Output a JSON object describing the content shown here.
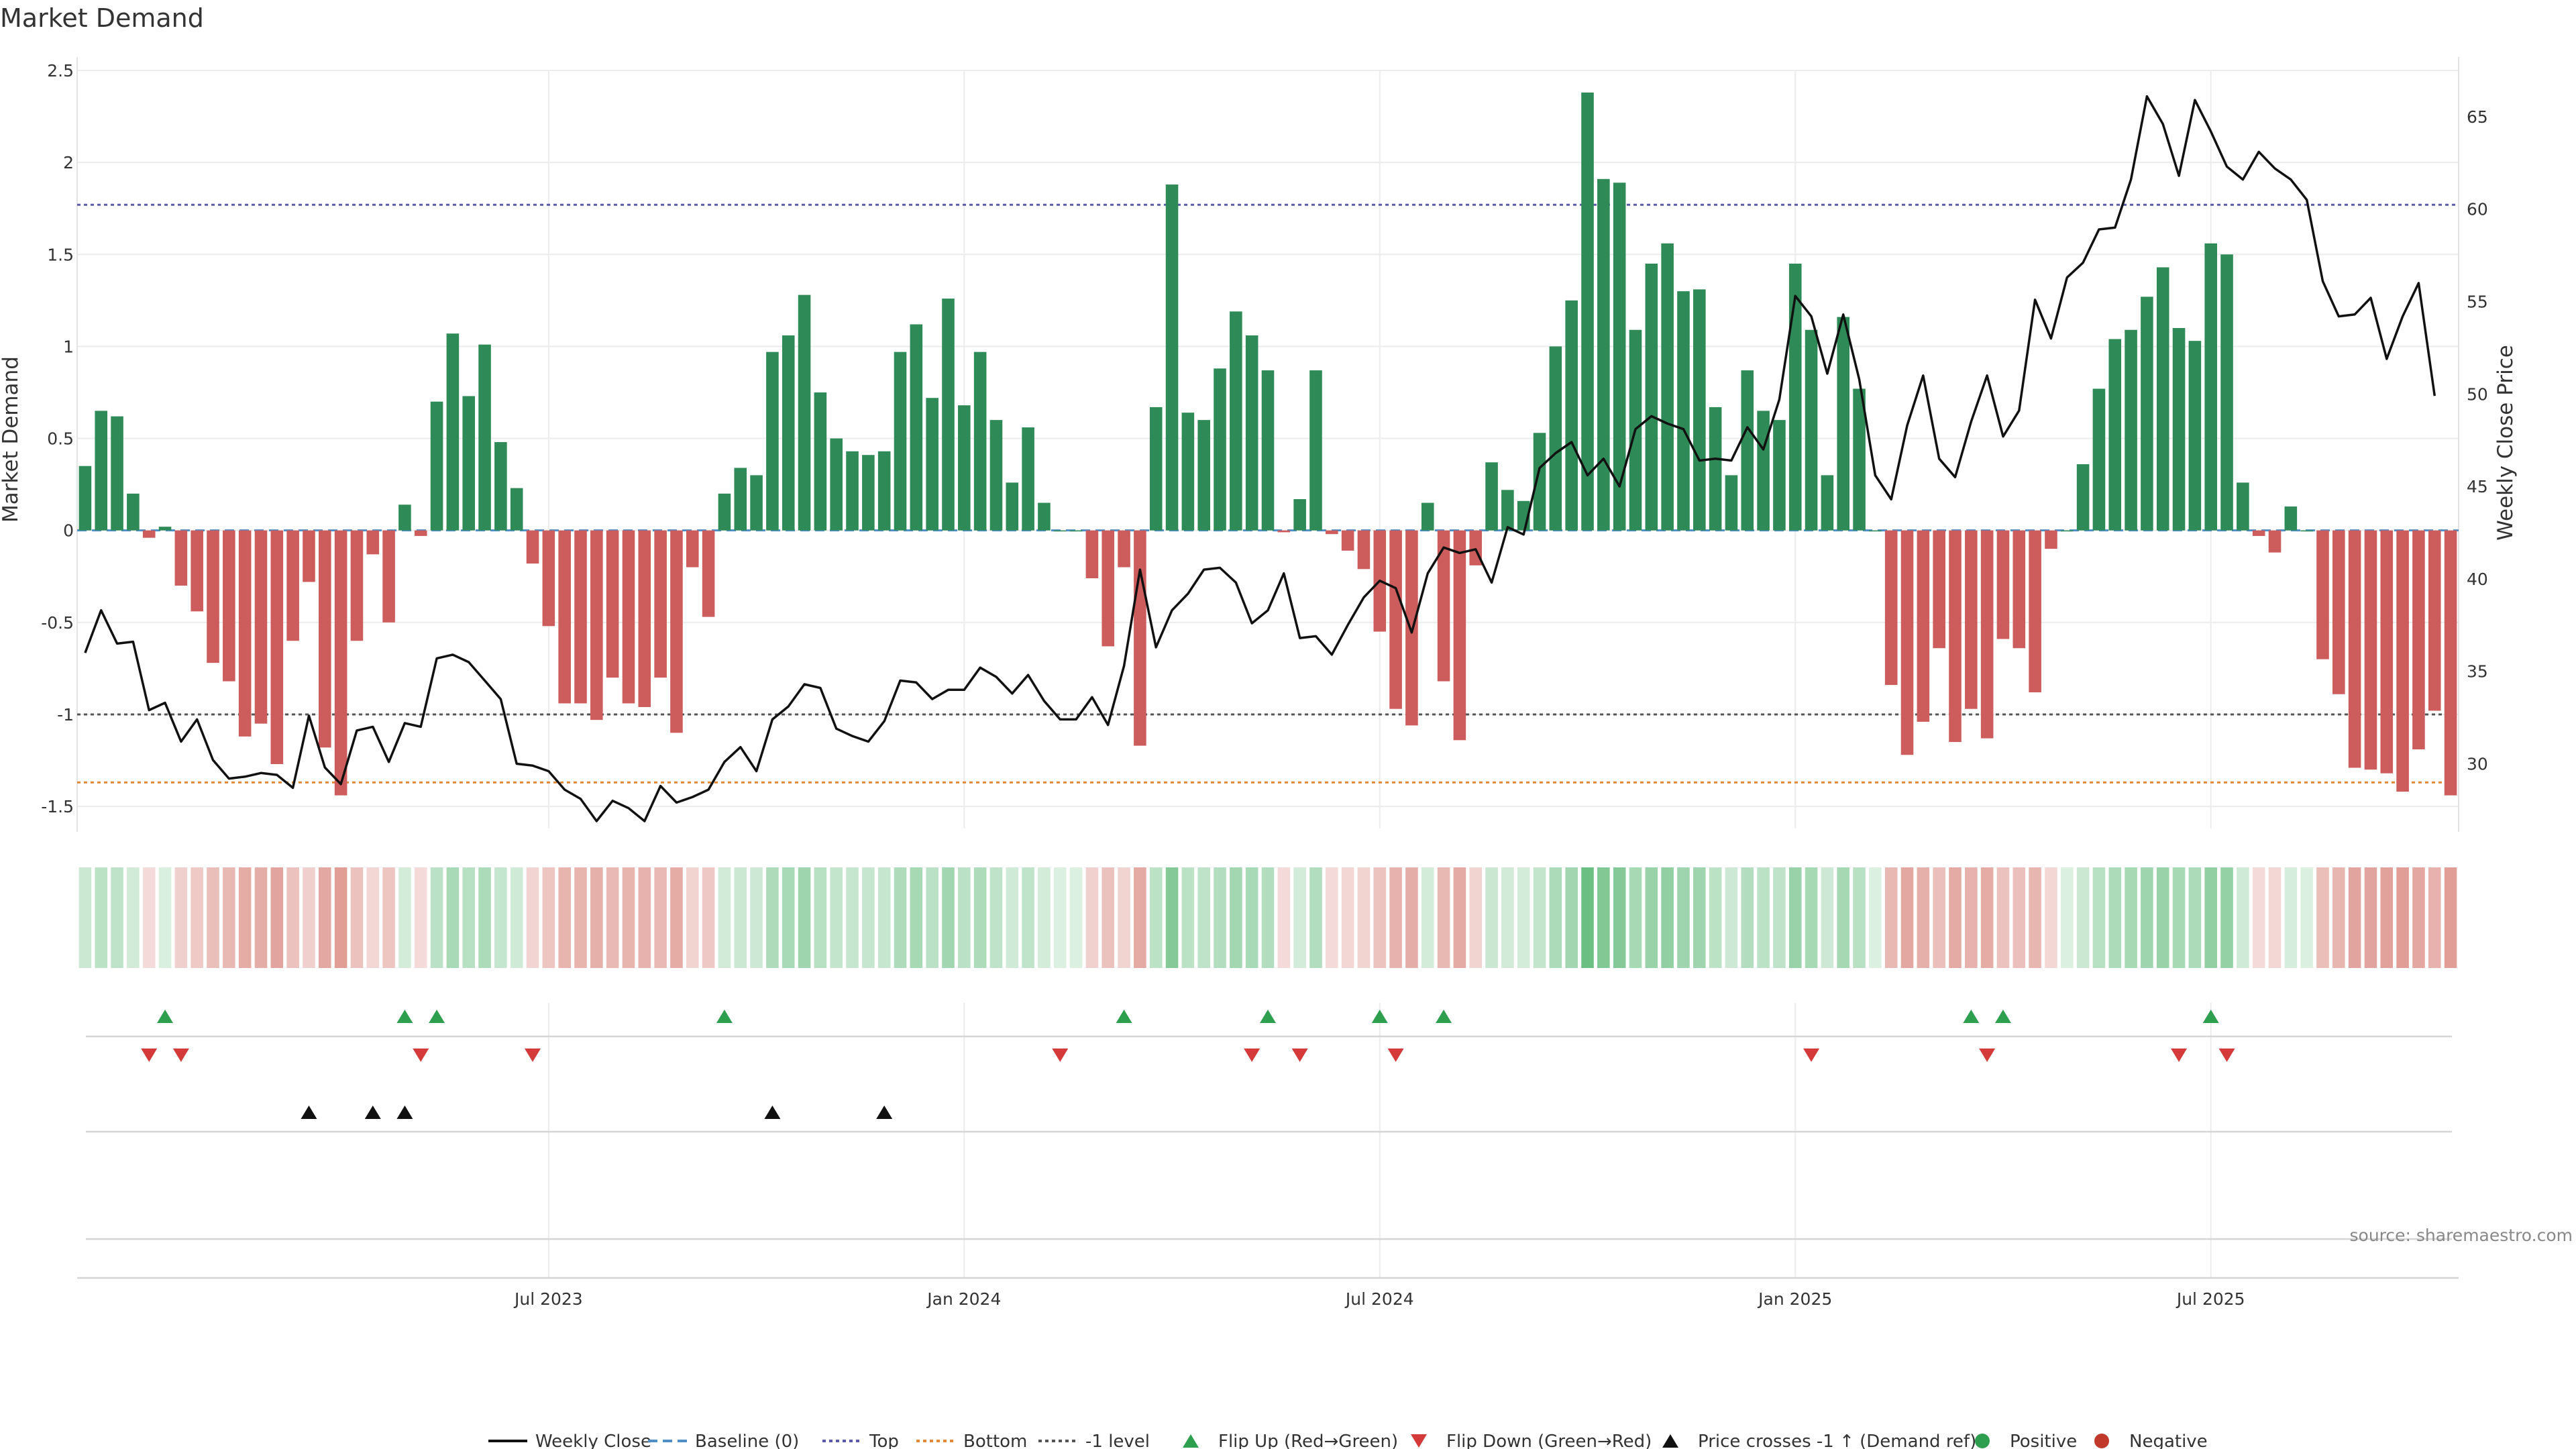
{
  "chart_data": {
    "type": "bar",
    "title": "Market Demand",
    "left_axis": {
      "label": "Market Demand",
      "ticks": [
        2.5,
        2,
        1.5,
        1,
        0.5,
        0,
        -0.5,
        -1,
        -1.5
      ],
      "range": [
        -1.62,
        2.5
      ]
    },
    "right_axis": {
      "label": "Weekly Close Price",
      "ticks": [
        30,
        35,
        40,
        45,
        50,
        55,
        60,
        65
      ],
      "range": [
        26.5,
        67.5
      ]
    },
    "x_ticks": [
      {
        "label": "Jul 2023",
        "week": 29
      },
      {
        "label": "Jan 2024",
        "week": 55
      },
      {
        "label": "Jul 2024",
        "week": 81
      },
      {
        "label": "Jan 2025",
        "week": 107
      },
      {
        "label": "Jul 2025",
        "week": 133
      }
    ],
    "reference_lines": {
      "baseline": 0,
      "top": 1.77,
      "bottom": -1.37,
      "minus_one_level": -1
    },
    "demand": [
      0.35,
      0.65,
      0.62,
      0.2,
      -0.04,
      0.02,
      -0.3,
      -0.44,
      -0.72,
      -0.82,
      -1.12,
      -1.05,
      -1.27,
      -0.6,
      -0.28,
      -1.18,
      -1.44,
      -0.6,
      -0.13,
      -0.5,
      0.14,
      -0.03,
      0.7,
      1.07,
      0.73,
      1.01,
      0.48,
      0.23,
      -0.18,
      -0.52,
      -0.94,
      -0.94,
      -1.03,
      -0.8,
      -0.94,
      -0.96,
      -0.8,
      -1.1,
      -0.2,
      -0.47,
      0.2,
      0.34,
      0.3,
      0.97,
      1.06,
      1.28,
      0.75,
      0.5,
      0.43,
      0.41,
      0.43,
      0.97,
      1.12,
      0.72,
      1.26,
      0.68,
      0.97,
      0.6,
      0.26,
      0.56,
      0.15,
      0,
      0,
      -0.26,
      -0.63,
      -0.2,
      -1.17,
      0.67,
      1.88,
      0.64,
      0.6,
      0.88,
      1.19,
      1.06,
      0.87,
      -0.01,
      0.17,
      0.87,
      -0.02,
      -0.11,
      -0.21,
      -0.55,
      -0.97,
      -1.06,
      0.15,
      -0.82,
      -1.14,
      -0.19,
      0.37,
      0.22,
      0.16,
      0.53,
      1.0,
      1.25,
      2.38,
      1.91,
      1.89,
      1.09,
      1.45,
      1.56,
      1.3,
      1.31,
      0.67,
      0.3,
      0.87,
      0.65,
      0.6,
      1.45,
      1.09,
      0.3,
      1.16,
      0.77,
      0,
      -0.84,
      -1.22,
      -1.04,
      -0.64,
      -1.15,
      -0.97,
      -1.13,
      -0.59,
      -0.64,
      -0.88,
      -0.1,
      0,
      0.36,
      0.77,
      1.04,
      1.09,
      1.27,
      1.43,
      1.1,
      1.03,
      1.56,
      1.5,
      0.26,
      -0.03,
      -0.12,
      0.13,
      0,
      -0.7,
      -0.89,
      -1.29,
      -1.3,
      -1.32,
      -1.42,
      -1.19,
      -0.98,
      -1.44
    ],
    "weekly_close": [
      36.0,
      38.3,
      36.5,
      36.6,
      32.9,
      33.3,
      31.2,
      32.4,
      30.2,
      29.2,
      29.3,
      29.5,
      29.4,
      28.7,
      32.6,
      29.8,
      28.9,
      31.8,
      32.0,
      30.1,
      32.2,
      32.0,
      35.7,
      35.9,
      35.5,
      34.5,
      33.5,
      30.0,
      29.9,
      29.6,
      28.6,
      28.1,
      26.9,
      28.0,
      27.6,
      26.9,
      28.8,
      27.9,
      28.2,
      28.6,
      30.1,
      30.9,
      29.6,
      32.4,
      33.1,
      34.3,
      34.1,
      31.9,
      31.5,
      31.2,
      32.3,
      34.5,
      34.4,
      33.5,
      34.0,
      34.0,
      35.2,
      34.7,
      33.8,
      34.8,
      33.4,
      32.4,
      32.4,
      33.6,
      32.1,
      35.3,
      40.5,
      36.3,
      38.3,
      39.2,
      40.5,
      40.6,
      39.8,
      37.6,
      38.3,
      40.3,
      36.8,
      36.9,
      35.9,
      37.5,
      39.0,
      39.9,
      39.5,
      37.1,
      40.3,
      41.7,
      41.4,
      41.6,
      39.8,
      42.8,
      42.4,
      46.0,
      46.8,
      47.4,
      45.6,
      46.5,
      45.0,
      48.1,
      48.8,
      48.4,
      48.1,
      46.4,
      46.5,
      46.4,
      48.2,
      47.0,
      49.7,
      55.3,
      54.2,
      51.1,
      54.3,
      50.8,
      45.6,
      44.3,
      48.3,
      51.0,
      46.5,
      45.5,
      48.5,
      51.0,
      47.7,
      49.1,
      55.1,
      53.0,
      56.3,
      57.1,
      58.9,
      59.0,
      61.6,
      66.1,
      64.6,
      61.8,
      65.9,
      64.2,
      62.3,
      61.6,
      63.1,
      62.2,
      61.6,
      60.5,
      56.1,
      54.2,
      54.3,
      55.2,
      51.9,
      54.2,
      56.0,
      49.9
    ],
    "flip_up_weeks": [
      5,
      20,
      22,
      40,
      65,
      74,
      81,
      85,
      118,
      120,
      133
    ],
    "flip_down_weeks": [
      4,
      6,
      21,
      28,
      61,
      73,
      76,
      82,
      108,
      119,
      131,
      134
    ],
    "price_cross_weeks": [
      14,
      18,
      20,
      43,
      50
    ],
    "legend": [
      {
        "label": "Weekly Close",
        "kind": "line",
        "color": "#111111"
      },
      {
        "label": "Baseline (0)",
        "kind": "dash",
        "color": "#4f8fc5"
      },
      {
        "label": "Top",
        "kind": "dot",
        "color": "#5a5aa8"
      },
      {
        "label": "Bottom",
        "kind": "dot",
        "color": "#e0893a"
      },
      {
        "label": "-1 level",
        "kind": "dot",
        "color": "#555555"
      },
      {
        "label": "Flip Up (Red→Green)",
        "kind": "up",
        "color": "#2e9e4f"
      },
      {
        "label": "Flip Down (Green→Red)",
        "kind": "down",
        "color": "#d43a3a"
      },
      {
        "label": "Price crosses -1 ↑ (Demand ref)",
        "kind": "up",
        "color": "#111111"
      },
      {
        "label": "Positive",
        "kind": "circle",
        "color": "#2e9e4f"
      },
      {
        "label": "Negative",
        "kind": "circle",
        "color": "#c0392b"
      }
    ],
    "source": "source: sharemaestro.com",
    "colors": {
      "positive": "#2e8b57",
      "negative": "#cd5c5c",
      "line": "#111111"
    }
  }
}
